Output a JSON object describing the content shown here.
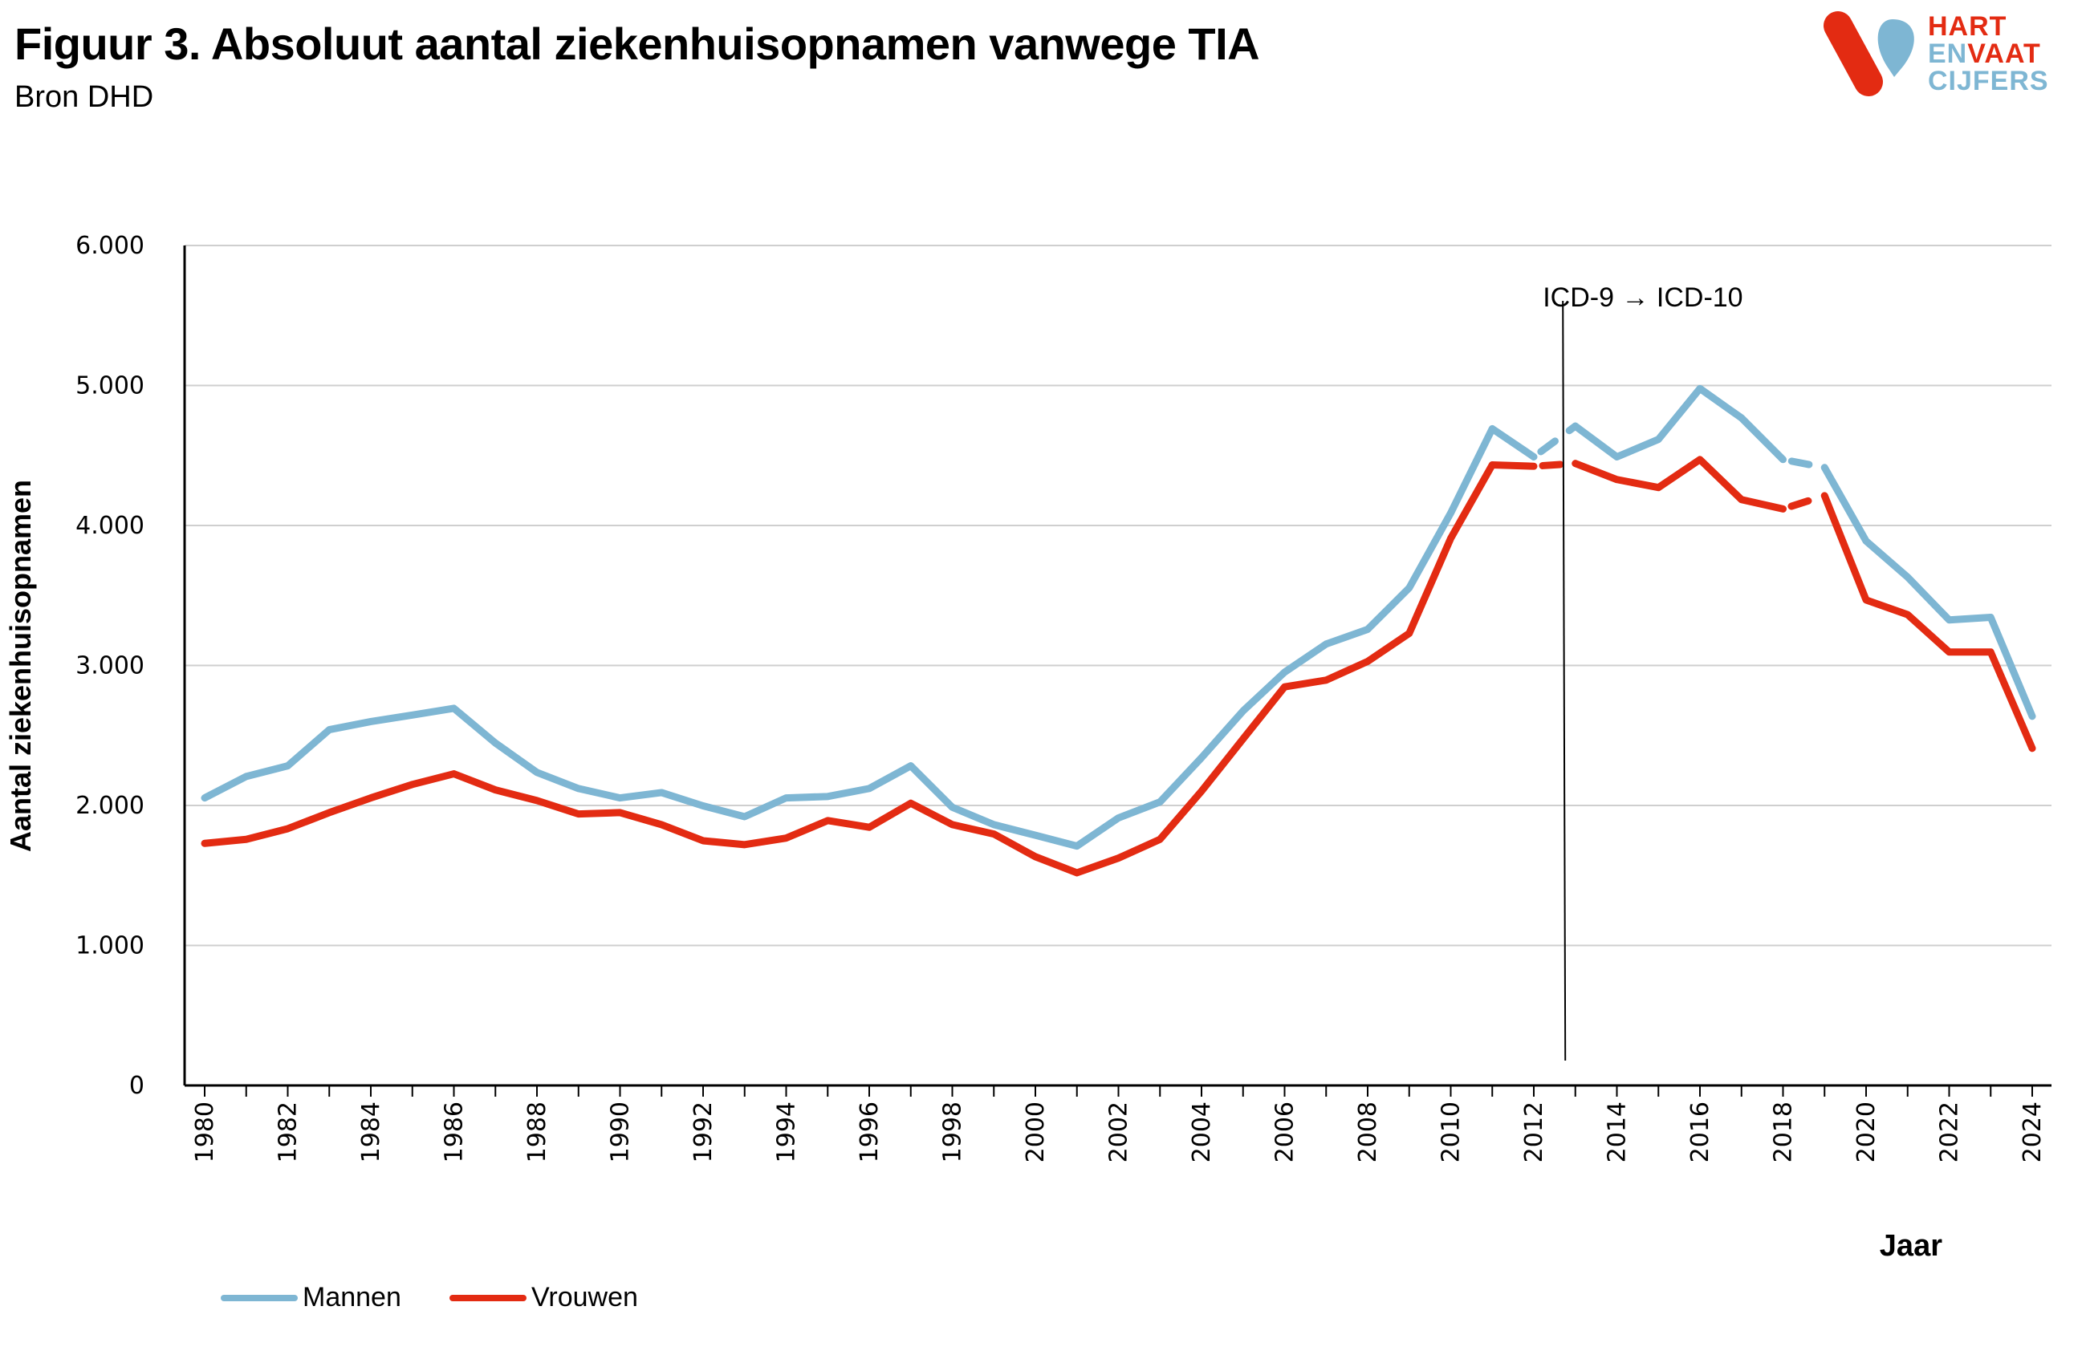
{
  "header": {
    "title": "Figuur 3. Absoluut aantal ziekenhuisopnamen vanwege TIA",
    "subtitle": "Bron DHD",
    "logo_text": [
      "HART",
      "EN",
      "VAAT",
      "CIJFERS"
    ]
  },
  "colors": {
    "mannen": "#7eb6d3",
    "vrouwen": "#e32b12",
    "logo_red": "#e32b12",
    "logo_blue": "#7eb6d3"
  },
  "chart_data": {
    "type": "line",
    "title": "Figuur 3. Absoluut aantal ziekenhuisopnamen vanwege TIA",
    "xlabel": "Jaar",
    "ylabel": "Aantal ziekenhuisopnamen",
    "ylim": [
      0,
      6000
    ],
    "yticks": [
      "0",
      "1.000",
      "2.000",
      "3.000",
      "4.000",
      "5.000",
      "6.000"
    ],
    "ytick_values": [
      0,
      1000,
      2000,
      3000,
      4000,
      5000,
      6000
    ],
    "xlim": [
      1980,
      2024
    ],
    "xtick_labels": [
      "1980",
      "1982",
      "1984",
      "1986",
      "1988",
      "1990",
      "1992",
      "1994",
      "1996",
      "1998",
      "2000",
      "2002",
      "2004",
      "2006",
      "2008",
      "2010",
      "2012",
      "2014",
      "2016",
      "2018",
      "2020",
      "2022",
      "2024"
    ],
    "grid": true,
    "legend": "bottom-left",
    "dashed_intervals": [
      [
        2012,
        2013
      ],
      [
        2018,
        2019
      ]
    ],
    "annotation": {
      "text": "ICD-9 → ICD-10",
      "x": 2012.7
    },
    "x": [
      1980,
      1981,
      1982,
      1983,
      1984,
      1985,
      1986,
      1987,
      1988,
      1989,
      1990,
      1991,
      1992,
      1993,
      1994,
      1995,
      1996,
      1997,
      1998,
      1999,
      2000,
      2001,
      2002,
      2003,
      2004,
      2005,
      2006,
      2007,
      2008,
      2009,
      2010,
      2011,
      2012,
      2013,
      2014,
      2015,
      2016,
      2017,
      2018,
      2019,
      2020,
      2021,
      2022,
      2023,
      2024
    ],
    "series": [
      {
        "name": "Mannen",
        "values": [
          2054,
          2207,
          2283,
          2541,
          2599,
          2646,
          2694,
          2446,
          2236,
          2121,
          2054,
          2092,
          1997,
          1920,
          2054,
          2064,
          2121,
          2283,
          1987,
          1863,
          1787,
          1710,
          1911,
          2025,
          2341,
          2675,
          2952,
          3153,
          3258,
          3554,
          4089,
          4691,
          4490,
          4710,
          4490,
          4615,
          4978,
          4768,
          4471,
          4414,
          3889,
          3631,
          3325,
          3344,
          2637
        ]
      },
      {
        "name": "Vrouwen",
        "values": [
          1729,
          1758,
          1834,
          1949,
          2054,
          2150,
          2226,
          2111,
          2035,
          1939,
          1949,
          1863,
          1748,
          1720,
          1767,
          1892,
          1844,
          2016,
          1863,
          1796,
          1634,
          1519,
          1624,
          1758,
          2102,
          2475,
          2847,
          2895,
          3029,
          3229,
          3908,
          4433,
          4423,
          4443,
          4328,
          4271,
          4471,
          4185,
          4118,
          4213,
          3468,
          3363,
          3096,
          3096,
          2408
        ]
      }
    ]
  }
}
